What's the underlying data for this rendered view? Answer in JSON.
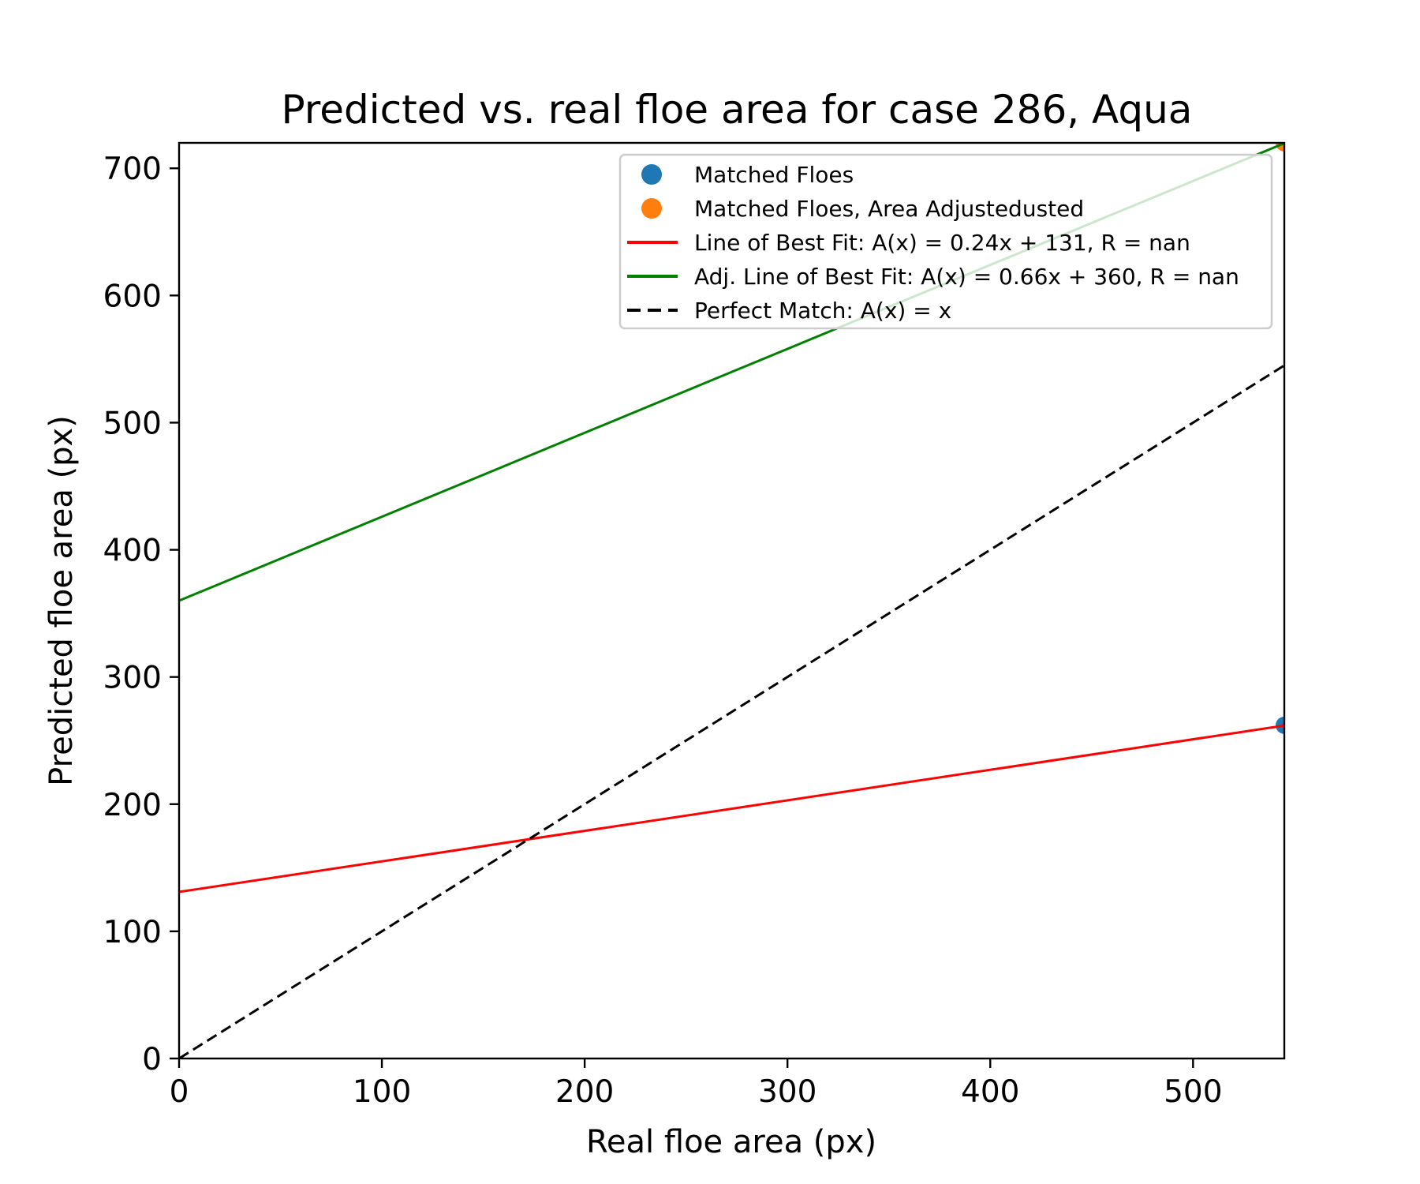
{
  "chart_data": {
    "type": "scatter",
    "title": "Predicted vs. real floe area  for case 286, Aqua",
    "xlabel": "Real floe area (px)",
    "ylabel": "Predicted floe area (px)",
    "xlim": [
      0,
      545
    ],
    "ylim": [
      0,
      720
    ],
    "xticks": [
      0,
      100,
      200,
      300,
      400,
      500
    ],
    "yticks": [
      0,
      100,
      200,
      300,
      400,
      500,
      600,
      700
    ],
    "grid": false,
    "legend_position": "top-right",
    "series": [
      {
        "name": "Matched Floes",
        "kind": "scatter",
        "color": "#1f77b4",
        "points": [
          [
            545,
            262
          ]
        ]
      },
      {
        "name": "Matched Floes, Area Adjustedusted",
        "kind": "scatter",
        "color": "#ff7f0e",
        "points": [
          [
            545,
            720
          ]
        ]
      },
      {
        "name": "Line of Best Fit: A(x) = 0.24x + 131, R = nan",
        "kind": "line",
        "color": "#ff0000",
        "slope": 0.24,
        "intercept": 131
      },
      {
        "name": "Adj. Line of Best Fit: A(x) = 0.66x + 360, R = nan",
        "kind": "line",
        "color": "#008000",
        "slope": 0.66,
        "intercept": 360
      },
      {
        "name": "Perfect Match: A(x) = x",
        "kind": "dashed-line",
        "color": "#000000",
        "slope": 1,
        "intercept": 0
      }
    ]
  }
}
